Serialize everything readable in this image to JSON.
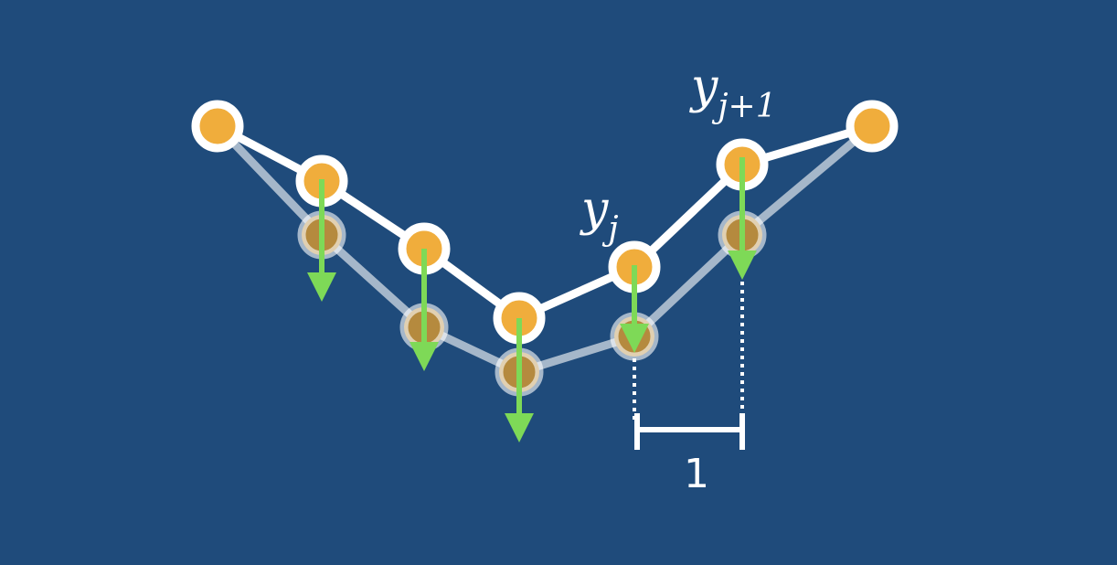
{
  "colors": {
    "background": "#1f4b7b",
    "line": "#ffffff",
    "node_fill": "#f0ad3c",
    "node_stroke": "#ffffff",
    "ghost_line": "rgba(255,255,255,0.55)",
    "arrow": "#7ed957"
  },
  "labels": {
    "yj_base": "y",
    "yj_sub": "j",
    "yj1_base": "y",
    "yj1_sub": "j+1",
    "spacing": "1"
  },
  "diagram": {
    "node_count": 7,
    "shifted_nodes": [
      1,
      2,
      3,
      4,
      5
    ],
    "highlighted_index": 4,
    "next_index": 5,
    "gap_value": 1
  }
}
